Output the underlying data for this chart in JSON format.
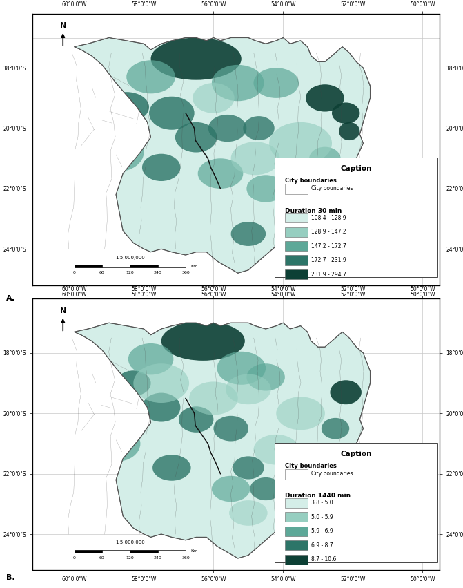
{
  "fig_width": 6.71,
  "fig_height": 8.51,
  "dpi": 100,
  "background_color": "#ffffff",
  "map_bg": "#ffffff",
  "grid_color": "#c8c8c8",
  "lon_ticks": [
    -60,
    -58,
    -56,
    -54,
    -52,
    -50
  ],
  "lat_ticks": [
    -17,
    -18,
    -20,
    -22,
    -24
  ],
  "panel_a_label": "A.",
  "panel_b_label": "B.",
  "caption_title": "Caption",
  "city_boundaries_bold": "City boundaries",
  "city_boundaries_normal": "City boundaries",
  "colors_30min": [
    "#d4eee8",
    "#96cec0",
    "#5da898",
    "#2d7568",
    "#0d4035"
  ],
  "legend_labels_30min": [
    "108.4 - 128.9",
    "128.9 - 147.2",
    "147.2 - 172.7",
    "172.7 - 231.9",
    "231.9 - 294.7"
  ],
  "duration_label_30min": "Duration 30 min",
  "colors_1440min": [
    "#d4eee8",
    "#96cec0",
    "#5da898",
    "#2d7568",
    "#0d4035"
  ],
  "legend_labels_1440min": [
    "3.8 - 5.0",
    "5.0 - 5.9",
    "5.9 - 6.9",
    "6.9 - 8.7",
    "8.7 - 10.6"
  ],
  "duration_label_1440min": "Duration 1440 min",
  "border_color": "#555555",
  "munic_color": "#444444",
  "river_color": "#111111",
  "xlim": [
    -61.2,
    -49.5
  ],
  "ylim": [
    -25.2,
    -16.2
  ]
}
